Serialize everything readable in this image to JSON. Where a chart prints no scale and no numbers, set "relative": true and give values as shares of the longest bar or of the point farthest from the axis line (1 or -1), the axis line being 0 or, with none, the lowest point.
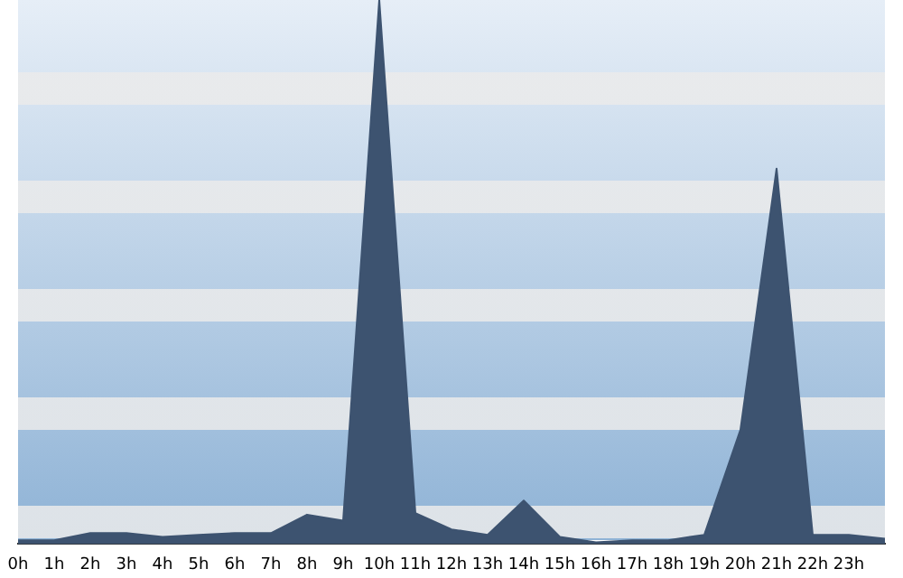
{
  "chart_data": {
    "type": "area",
    "relative": true,
    "legend": false,
    "categories": [
      "0h",
      "1h",
      "2h",
      "3h",
      "4h",
      "5h",
      "6h",
      "7h",
      "8h",
      "9h",
      "10h",
      "11h",
      "12h",
      "13h",
      "14h",
      "15h",
      "16h",
      "17h",
      "18h",
      "19h",
      "20h",
      "21h",
      "22h",
      "23h",
      null
    ],
    "series": [
      {
        "color": "#3d5370",
        "values": [
          0.007,
          0.007,
          0.02,
          0.02,
          0.013,
          0.017,
          0.02,
          0.02,
          0.054,
          0.043,
          1,
          0.057,
          0.027,
          0.017,
          0.08,
          0.013,
          0.003,
          0.007,
          0.007,
          0.017,
          0.21,
          0.69,
          0.017,
          0.017,
          0.01
        ]
      }
    ]
  }
}
